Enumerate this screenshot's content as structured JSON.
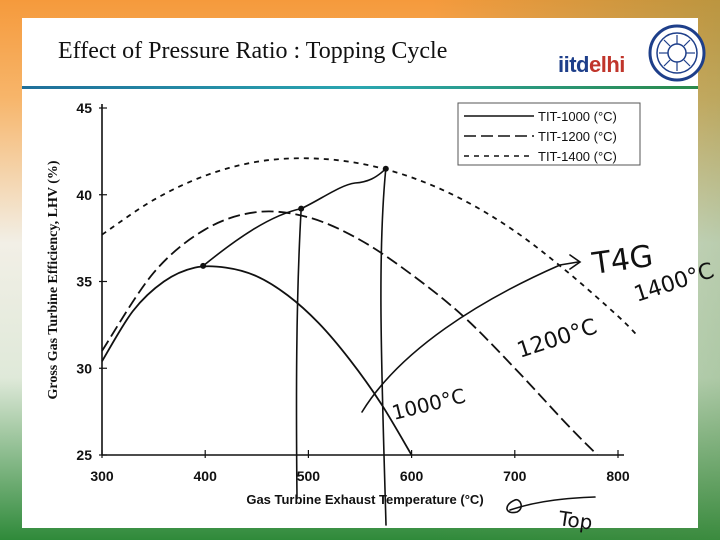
{
  "slide": {
    "title": "Effect of Pressure Ratio : Topping Cycle",
    "logo_part1": "iitd",
    "logo_part2": "elhi"
  },
  "chart_data": {
    "type": "line",
    "title": "",
    "xlabel": "Gas Turbine Exhaust Temperature (°C)",
    "ylabel": "Gross Gas Turbine Efficiency, LHV (%)",
    "xlim": [
      300,
      800
    ],
    "ylim": [
      25,
      45
    ],
    "x_ticks": [
      300,
      400,
      500,
      600,
      700,
      800
    ],
    "y_ticks": [
      25,
      30,
      35,
      40,
      45
    ],
    "grid": false,
    "legend_position": "top-right",
    "series": [
      {
        "name": "TIT-1000 (°C)",
        "style": "solid",
        "x": [
          300,
          330,
          360,
          390,
          420,
          450,
          480,
          510,
          540,
          570,
          600
        ],
        "y": [
          30.4,
          33.3,
          35.0,
          35.8,
          35.8,
          35.3,
          34.2,
          32.6,
          30.5,
          28.0,
          25.0
        ]
      },
      {
        "name": "TIT-1200 (°C)",
        "style": "dash",
        "x": [
          300,
          350,
          400,
          450,
          500,
          550,
          600,
          650,
          700,
          750,
          780
        ],
        "y": [
          31.0,
          35.5,
          38.0,
          39.0,
          38.7,
          37.4,
          35.4,
          33.0,
          30.0,
          26.8,
          25.0
        ]
      },
      {
        "name": "TIT-1400 (°C)",
        "style": "short-dash",
        "x": [
          300,
          350,
          400,
          450,
          500,
          550,
          600,
          650,
          700,
          750,
          800,
          820
        ],
        "y": [
          37.7,
          39.7,
          41.1,
          41.9,
          42.1,
          41.8,
          41.0,
          39.7,
          37.9,
          35.6,
          33.0,
          31.8
        ]
      }
    ],
    "annotations": {
      "optimum_points": [
        {
          "x": 398,
          "y": 35.9
        },
        {
          "x": 493,
          "y": 39.2
        },
        {
          "x": 575,
          "y": 41.5
        }
      ],
      "labels": [
        "1000°C",
        "1200°C",
        "1400°C",
        "T4G",
        "Top"
      ]
    }
  }
}
